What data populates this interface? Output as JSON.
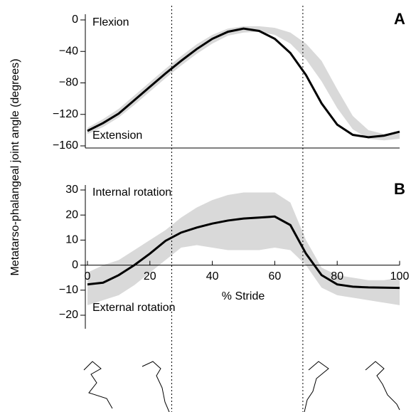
{
  "y_label": "Metatarso-phalangeal joint angle (degrees)",
  "x_label": "% Stride",
  "vlines": [
    27,
    69
  ],
  "chart_data": [
    {
      "type": "line",
      "panel": "A",
      "annotations": [
        "Flexion",
        "Extension"
      ],
      "xlim": [
        0,
        100
      ],
      "ylim": [
        -160,
        0
      ],
      "yticks": [
        0,
        {
          "value": -40,
          "label": "−40"
        },
        {
          "value": -80,
          "label": "−80"
        },
        {
          "value": -120,
          "label": "−120"
        },
        {
          "value": -160,
          "label": "−160"
        }
      ],
      "x": [
        0,
        5,
        10,
        15,
        20,
        25,
        30,
        35,
        40,
        45,
        50,
        55,
        60,
        65,
        70,
        75,
        80,
        85,
        90,
        95,
        100
      ],
      "series": [
        {
          "color": "#000000",
          "band_color": "#d9d9d9",
          "values": [
            -141,
            -131,
            -119,
            -102,
            -85,
            -68,
            -52,
            -37,
            -24,
            -15,
            -11,
            -14,
            -24,
            -42,
            -70,
            -106,
            -133,
            -146,
            -149,
            -147,
            -142
          ],
          "upper": [
            -137,
            -126,
            -113,
            -96,
            -79,
            -62,
            -46,
            -31,
            -19,
            -11,
            -8,
            -8,
            -10,
            -16,
            -30,
            -52,
            -88,
            -122,
            -140,
            -145,
            -143
          ],
          "lower": [
            -145,
            -136,
            -124,
            -108,
            -91,
            -74,
            -58,
            -43,
            -30,
            -20,
            -16,
            -15,
            -19,
            -30,
            -50,
            -78,
            -112,
            -139,
            -151,
            -153,
            -151
          ]
        }
      ]
    },
    {
      "type": "line",
      "panel": "B",
      "annotations": [
        "Internal rotation",
        "External rotation"
      ],
      "xlim": [
        0,
        100
      ],
      "ylim": [
        -20,
        30
      ],
      "xticks": [
        0,
        20,
        40,
        60,
        80,
        100
      ],
      "yticks": [
        30,
        20,
        10,
        0,
        {
          "value": -10,
          "label": "−10"
        },
        {
          "value": -20,
          "label": "−20"
        }
      ],
      "x": [
        0,
        5,
        10,
        15,
        20,
        25,
        30,
        35,
        40,
        45,
        50,
        55,
        60,
        65,
        70,
        75,
        80,
        85,
        90,
        95,
        100
      ],
      "series": [
        {
          "color": "#000000",
          "band_color": "#d9d9d9",
          "values": [
            -7.7,
            -7,
            -4,
            0,
            4.6,
            9.7,
            13,
            15,
            16.6,
            17.8,
            18.6,
            19,
            19.4,
            16,
            4.6,
            -4,
            -7.7,
            -8.6,
            -8.9,
            -9,
            -9.1
          ],
          "upper": [
            -3,
            0,
            2,
            6,
            10,
            14,
            19,
            23,
            26,
            28,
            29,
            29,
            29,
            25,
            10,
            -1,
            -4,
            -5,
            -6,
            -6,
            -5
          ],
          "lower": [
            -16,
            -14,
            -12,
            -8,
            -3,
            2,
            7,
            8,
            7,
            6,
            6,
            6,
            7,
            6,
            0,
            -9,
            -12,
            -13,
            -14,
            -15,
            -16
          ]
        }
      ]
    }
  ]
}
